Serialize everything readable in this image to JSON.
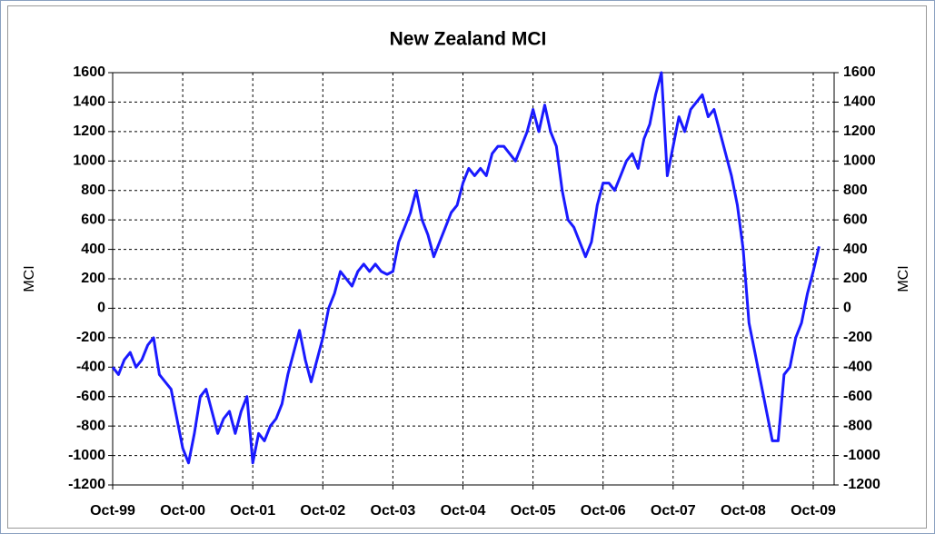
{
  "chart_data": {
    "type": "line",
    "title": "New Zealand MCI",
    "y_label": "MCI",
    "y2_label": "MCI",
    "categories": [
      "Oct-99",
      null,
      null,
      null,
      null,
      null,
      null,
      null,
      null,
      null,
      null,
      null,
      "Oct-00",
      null,
      null,
      null,
      null,
      null,
      null,
      null,
      null,
      null,
      null,
      null,
      "Oct-01",
      null,
      null,
      null,
      null,
      null,
      null,
      null,
      null,
      null,
      null,
      null,
      "Oct-02",
      null,
      null,
      null,
      null,
      null,
      null,
      null,
      null,
      null,
      null,
      null,
      "Oct-03",
      null,
      null,
      null,
      null,
      null,
      null,
      null,
      null,
      null,
      null,
      null,
      "Oct-04",
      null,
      null,
      null,
      null,
      null,
      null,
      null,
      null,
      null,
      null,
      null,
      "Oct-05",
      null,
      null,
      null,
      null,
      null,
      null,
      null,
      null,
      null,
      null,
      null,
      "Oct-06",
      null,
      null,
      null,
      null,
      null,
      null,
      null,
      null,
      null,
      null,
      null,
      "Oct-07",
      null,
      null,
      null,
      null,
      null,
      null,
      null,
      null,
      null,
      null,
      null,
      "Oct-08",
      null,
      null,
      null,
      null,
      null,
      null,
      null,
      null,
      null,
      null,
      null,
      "Oct-09",
      null
    ],
    "series": [
      {
        "name": "MCI",
        "color": "#1a1aff",
        "values": [
          -400,
          -450,
          -350,
          -300,
          -400,
          -350,
          -250,
          -200,
          -450,
          -500,
          -550,
          -750,
          -950,
          -1050,
          -850,
          -600,
          -550,
          -700,
          -850,
          -750,
          -700,
          -850,
          -700,
          -600,
          -1050,
          -850,
          -900,
          -800,
          -750,
          -650,
          -450,
          -300,
          -150,
          -350,
          -500,
          -350,
          -200,
          0,
          100,
          250,
          200,
          150,
          250,
          300,
          250,
          300,
          250,
          230,
          250,
          450,
          550,
          650,
          800,
          600,
          500,
          350,
          450,
          550,
          650,
          700,
          850,
          950,
          900,
          950,
          900,
          1050,
          1100,
          1100,
          1050,
          1000,
          1100,
          1200,
          1350,
          1200,
          1380,
          1200,
          1100,
          800,
          600,
          550,
          450,
          350,
          450,
          700,
          850,
          850,
          800,
          900,
          1000,
          1050,
          950,
          1150,
          1250,
          1450,
          1600,
          900,
          1100,
          1300,
          1200,
          1350,
          1400,
          1450,
          1300,
          1350,
          1200,
          1050,
          900,
          700,
          400,
          -100,
          -300,
          -500,
          -700,
          -900,
          -900,
          -450,
          -400,
          -200,
          -100,
          100,
          250,
          420
        ]
      }
    ],
    "ylim": [
      -1200,
      1600
    ],
    "yticks": [
      -1200,
      -1000,
      -800,
      -600,
      -400,
      -200,
      0,
      200,
      400,
      600,
      800,
      1000,
      1200,
      1400,
      1600
    ],
    "y2lim": [
      -1200,
      1600
    ],
    "y2ticks": [
      -1200,
      -1000,
      -800,
      -600,
      -400,
      -200,
      0,
      200,
      400,
      600,
      800,
      1000,
      1200,
      1400,
      1600
    ],
    "grid": true
  }
}
